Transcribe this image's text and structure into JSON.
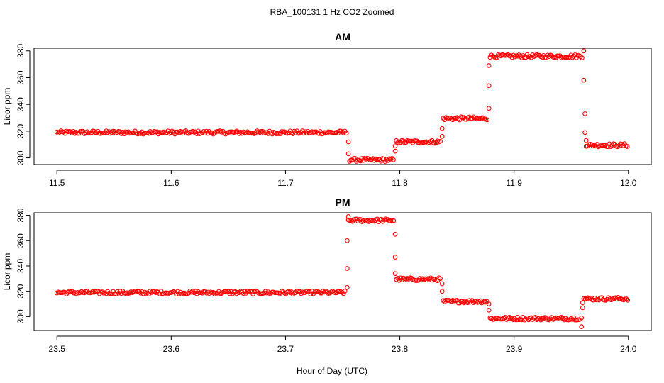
{
  "figure": {
    "title": "RBA_100131  1 Hz CO2 Zoomed",
    "xlabel": "Hour of Day (UTC)"
  },
  "chart_data": [
    {
      "type": "scatter",
      "title": "AM",
      "xlabel": "",
      "ylabel": "Licor ppm",
      "xlim": [
        11.5,
        12.0
      ],
      "ylim": [
        295,
        382
      ],
      "xticks": [
        11.5,
        11.6,
        11.7,
        11.8,
        11.9,
        12.0
      ],
      "xtick_labels": [
        "11.5",
        "11.6",
        "11.7",
        "11.8",
        "11.9",
        "12.0"
      ],
      "yticks": [
        300,
        320,
        340,
        360,
        380
      ],
      "ytick_labels": [
        "300",
        "320",
        "340",
        "360",
        "380"
      ],
      "marker": "open-circle",
      "color": "#ff0000",
      "grid": false,
      "series": [
        {
          "segments": [
            {
              "x_start": 11.5,
              "x_end": 11.754,
              "y": 319
            },
            {
              "x_start": 11.756,
              "x_end": 11.795,
              "y": 298.5
            },
            {
              "x_start": 11.797,
              "x_end": 11.836,
              "y": 312
            },
            {
              "x_start": 11.838,
              "x_end": 11.877,
              "y": 329.5
            },
            {
              "x_start": 11.879,
              "x_end": 11.96,
              "y": 376
            },
            {
              "x_start": 11.963,
              "x_end": 12.0,
              "y": 309.5
            }
          ],
          "transition_points": [
            {
              "x": 11.755,
              "y": 312
            },
            {
              "x": 11.755,
              "y": 303
            },
            {
              "x": 11.796,
              "y": 305
            },
            {
              "x": 11.796,
              "y": 309
            },
            {
              "x": 11.837,
              "y": 316
            },
            {
              "x": 11.837,
              "y": 322
            },
            {
              "x": 11.878,
              "y": 337
            },
            {
              "x": 11.878,
              "y": 354
            },
            {
              "x": 11.878,
              "y": 369
            },
            {
              "x": 11.961,
              "y": 380
            },
            {
              "x": 11.961,
              "y": 358
            },
            {
              "x": 11.962,
              "y": 333
            },
            {
              "x": 11.962,
              "y": 319
            },
            {
              "x": 11.963,
              "y": 313
            }
          ]
        }
      ]
    },
    {
      "type": "scatter",
      "title": "PM",
      "xlabel": "Hour of Day (UTC)",
      "ylabel": "Licor ppm",
      "xlim": [
        23.5,
        24.0
      ],
      "ylim": [
        289,
        382
      ],
      "xticks": [
        23.5,
        23.6,
        23.7,
        23.8,
        23.9,
        24.0
      ],
      "xtick_labels": [
        "23.5",
        "23.6",
        "23.7",
        "23.8",
        "23.9",
        "24.0"
      ],
      "yticks": [
        300,
        320,
        340,
        360,
        380
      ],
      "ytick_labels": [
        "300",
        "320",
        "340",
        "360",
        "380"
      ],
      "marker": "open-circle",
      "color": "#ff0000",
      "grid": false,
      "series": [
        {
          "segments": [
            {
              "x_start": 23.5,
              "x_end": 23.753,
              "y": 319
            },
            {
              "x_start": 23.755,
              "x_end": 23.795,
              "y": 376
            },
            {
              "x_start": 23.797,
              "x_end": 23.836,
              "y": 329.5
            },
            {
              "x_start": 23.838,
              "x_end": 23.877,
              "y": 312
            },
            {
              "x_start": 23.879,
              "x_end": 23.958,
              "y": 298.5
            },
            {
              "x_start": 23.961,
              "x_end": 24.0,
              "y": 314
            }
          ],
          "transition_points": [
            {
              "x": 23.754,
              "y": 323
            },
            {
              "x": 23.754,
              "y": 338
            },
            {
              "x": 23.754,
              "y": 360
            },
            {
              "x": 23.755,
              "y": 379
            },
            {
              "x": 23.796,
              "y": 365
            },
            {
              "x": 23.796,
              "y": 347
            },
            {
              "x": 23.796,
              "y": 334
            },
            {
              "x": 23.837,
              "y": 326
            },
            {
              "x": 23.837,
              "y": 320
            },
            {
              "x": 23.878,
              "y": 310
            },
            {
              "x": 23.878,
              "y": 305
            },
            {
              "x": 23.959,
              "y": 292
            },
            {
              "x": 23.959,
              "y": 299
            },
            {
              "x": 23.96,
              "y": 307
            },
            {
              "x": 23.96,
              "y": 311
            }
          ]
        }
      ]
    }
  ]
}
